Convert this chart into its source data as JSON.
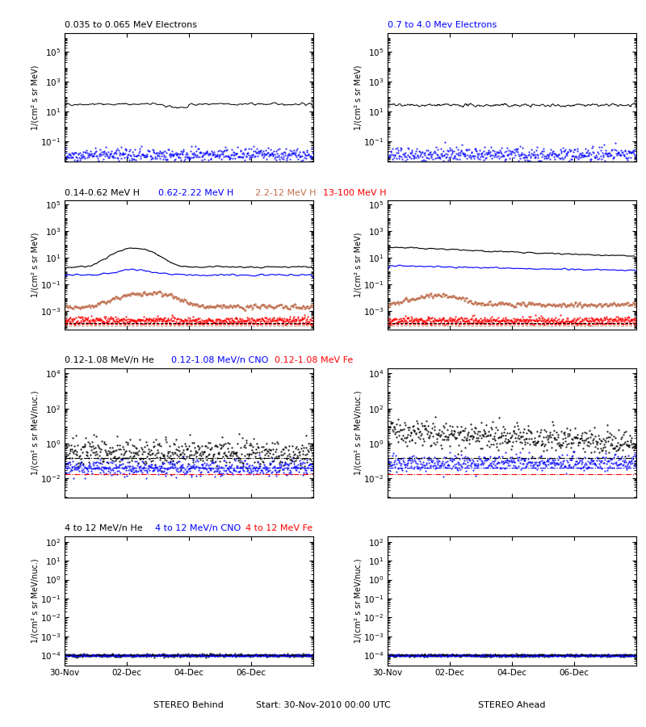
{
  "title_row1_left": "0.035 to 0.065 MeV Electrons",
  "title_row1_right": "0.7 to 4.0 Mev Electrons",
  "title_row1_left_color": "black",
  "title_row1_right_color": "blue",
  "title_row2_parts": [
    "0.14-0.62 MeV H",
    "0.62-2.22 MeV H",
    "2.2-12 MeV H",
    "13-100 MeV H"
  ],
  "title_row2_colors": [
    "black",
    "blue",
    "#c07050",
    "red"
  ],
  "title_row3_parts": [
    "0.12-1.08 MeV/n He",
    "0.12-1.08 MeV/n CNO",
    "0.12-1.08 MeV Fe"
  ],
  "title_row3_colors": [
    "black",
    "blue",
    "red"
  ],
  "title_row4_parts": [
    "4 to 12 MeV/n He",
    "4 to 12 MeV/n CNO",
    "4 to 12 MeV Fe"
  ],
  "title_row4_colors": [
    "black",
    "blue",
    "red"
  ],
  "xlabel_left": "STEREO Behind",
  "xlabel_right": "STEREO Ahead",
  "xlabel_center": "Start: 30-Nov-2010 00:00 UTC",
  "xtick_labels": [
    "30-Nov",
    "02-Dec",
    "04-Dec",
    "06-Dec"
  ],
  "ylabel_electrons": "1/(cm² s sr MeV)",
  "ylabel_H": "1/(cm² s sr MeV)",
  "ylabel_heavy": "1/(cm² s sr MeV/nuc.)",
  "background_color": "white",
  "num_points": 500,
  "seed": 42
}
